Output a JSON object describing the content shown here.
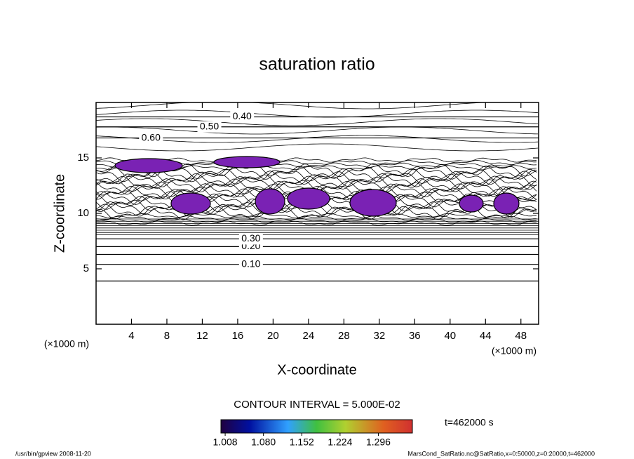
{
  "chart_data": {
    "type": "contour",
    "title": "saturation ratio",
    "xlabel": "X-coordinate",
    "ylabel": "Z-coordinate",
    "xunit": "(×1000 m)",
    "xlim": [
      0,
      50
    ],
    "xticks": [
      4,
      8,
      12,
      16,
      20,
      24,
      28,
      32,
      36,
      40,
      44,
      48
    ],
    "ylim": [
      0,
      20
    ],
    "yticks": [
      5,
      10,
      15
    ],
    "contours": [
      {
        "value": 0.05,
        "z": 3.9
      },
      {
        "value": 0.1,
        "label": "0.10",
        "z": 5.4,
        "label_x": 17.5
      },
      {
        "value": 0.15,
        "z": 6.3
      },
      {
        "value": 0.2,
        "label": "0.20",
        "z": 7.0,
        "label_x": 17.5
      },
      {
        "value": 0.3,
        "label": "0.30",
        "z": 7.7,
        "label_x": 17.5
      },
      {
        "value": 0.4,
        "label": "0.40",
        "z": 18.7,
        "label_x": 16.5
      },
      {
        "value": 0.5,
        "label": "0.50",
        "z": 17.8,
        "label_x": 12.8
      },
      {
        "value": 0.6,
        "label": "0.60",
        "z": 16.8,
        "label_x": 6.2
      }
    ],
    "contour_interval": "CONTOUR INTERVAL = 5.000E-02",
    "time_label": "t=462000 s",
    "colorbar": {
      "lim": [
        1.0,
        1.36
      ],
      "ticks": [
        1.008,
        {
          "value": 1.08,
          "label": "1.080"
        },
        1.152,
        1.224,
        1.296
      ]
    },
    "footer_left": "/usr/bin/gpview   2008-11-20",
    "footer_right": "MarsCond_SatRatio.nc@SatRatio,x=0:50000,z=0:20000,t=462000"
  }
}
